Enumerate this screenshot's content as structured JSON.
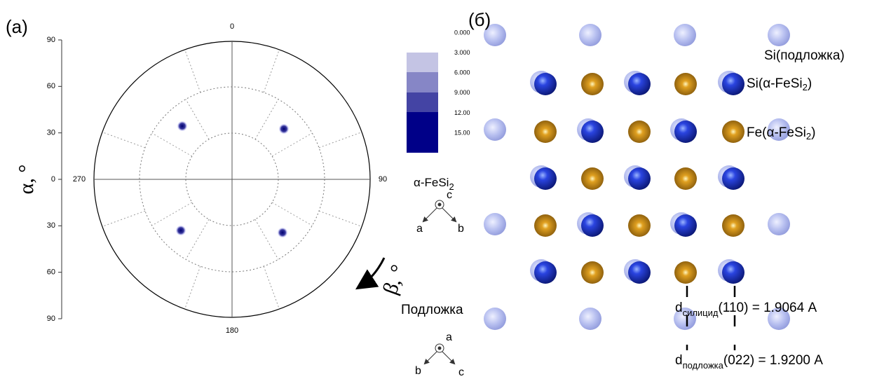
{
  "panel_a": {
    "label": "(а)",
    "alpha_axis": {
      "label": "α, °",
      "ticks": [
        "90",
        "60",
        "30",
        "0",
        "30",
        "60",
        "90"
      ]
    },
    "beta_label": "β, °",
    "angle_labels": {
      "top": "0",
      "right": "90",
      "bottom": "180",
      "left": "270"
    },
    "colorbar": {
      "levels": [
        "0.000",
        "3.000",
        "6.000",
        "9.000",
        "12.00",
        "15.00"
      ]
    },
    "silicide_axes": {
      "title": "α-FeSi",
      "title_sub": "2",
      "up": "c",
      "left": "a",
      "right": "b"
    },
    "substrate_axes": {
      "title": "Подложка",
      "up": "a",
      "left": "b",
      "right": "c"
    }
  },
  "panel_b": {
    "label": "(б)",
    "legend": [
      {
        "text": "Si(подложка)"
      },
      {
        "text": "Si(α-FeSi",
        "sub": "2",
        "tail": ")"
      },
      {
        "text": "Fe(α-FeSi",
        "sub": "2",
        "tail": ")"
      }
    ],
    "d_silicide": {
      "d": "d",
      "sub": "силицид",
      "rest": "(110) = 1.9064 A"
    },
    "d_substrate": {
      "d": "d",
      "sub": "подложка",
      "rest": "(022) = 1.9200 A"
    }
  }
}
